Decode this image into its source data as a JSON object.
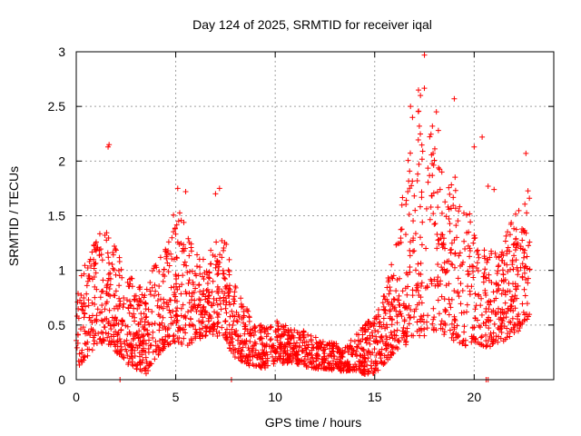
{
  "chart_data": {
    "type": "scatter",
    "title": "Day 124 of 2025, SRMTID for receiver iqal",
    "xlabel": "GPS time / hours",
    "ylabel": "SRMTID / TECUs",
    "xlim": [
      0,
      24
    ],
    "ylim": [
      0,
      3
    ],
    "xticks": [
      0,
      5,
      10,
      15,
      20
    ],
    "yticks": [
      0,
      0.5,
      1,
      1.5,
      2,
      2.5,
      3
    ],
    "xtick_labels": [
      "0",
      "5",
      "10",
      "15",
      "20"
    ],
    "ytick_labels": [
      "0",
      "0.5",
      "1",
      "1.5",
      "2",
      "2.5",
      "3"
    ],
    "grid": true,
    "marker": "+",
    "series": [
      {
        "name": "SRMTID",
        "color": "#ff0000",
        "profile_x": [
          0,
          0.5,
          1,
          1.5,
          2,
          2.5,
          3,
          3.5,
          4,
          4.5,
          5,
          5.5,
          6,
          6.5,
          7,
          7.5,
          8,
          8.5,
          9,
          9.5,
          10,
          10.5,
          11,
          11.5,
          12,
          12.5,
          13,
          13.5,
          14,
          14.5,
          15,
          15.5,
          16,
          16.5,
          17,
          17.5,
          18,
          18.5,
          19,
          19.5,
          20,
          20.5,
          21,
          21.5,
          22,
          22.5,
          22.8
        ],
        "profile_low": [
          0.1,
          0.2,
          0.3,
          0.35,
          0.25,
          0.15,
          0.1,
          0.05,
          0.2,
          0.3,
          0.35,
          0.3,
          0.35,
          0.4,
          0.4,
          0.35,
          0.2,
          0.15,
          0.1,
          0.1,
          0.15,
          0.15,
          0.15,
          0.12,
          0.1,
          0.1,
          0.08,
          0.08,
          0.08,
          0.05,
          0.05,
          0.15,
          0.25,
          0.3,
          0.35,
          0.4,
          0.45,
          0.4,
          0.35,
          0.3,
          0.35,
          0.3,
          0.3,
          0.35,
          0.4,
          0.5,
          0.6
        ],
        "profile_high": [
          0.8,
          1.1,
          1.3,
          1.4,
          1.2,
          1.0,
          0.9,
          0.8,
          1.1,
          1.2,
          1.6,
          1.5,
          1.2,
          1.1,
          1.3,
          1.3,
          0.9,
          0.7,
          0.5,
          0.5,
          0.55,
          0.5,
          0.45,
          0.45,
          0.4,
          0.35,
          0.35,
          0.3,
          0.4,
          0.5,
          0.6,
          0.8,
          1.2,
          1.8,
          2.4,
          2.7,
          2.2,
          1.8,
          1.9,
          1.6,
          1.5,
          1.3,
          1.2,
          1.3,
          1.5,
          1.6,
          1.8
        ],
        "outliers": [
          [
            1.6,
            2.13
          ],
          [
            1.65,
            2.15
          ],
          [
            17.5,
            2.97
          ],
          [
            17.2,
            2.65
          ],
          [
            17.3,
            2.6
          ],
          [
            19.0,
            2.57
          ],
          [
            18.1,
            2.45
          ],
          [
            16.8,
            2.5
          ],
          [
            16.9,
            2.4
          ],
          [
            17.9,
            2.32
          ],
          [
            18.2,
            2.28
          ],
          [
            20.4,
            2.22
          ],
          [
            20.0,
            2.13
          ],
          [
            22.6,
            2.07
          ],
          [
            5.1,
            1.75
          ],
          [
            7.2,
            1.75
          ],
          [
            7.0,
            1.7
          ],
          [
            5.5,
            1.72
          ],
          [
            20.7,
            1.77
          ],
          [
            21.0,
            1.74
          ],
          [
            2.2,
            0.0
          ],
          [
            7.8,
            0.0
          ],
          [
            20.6,
            0.0
          ],
          [
            20.7,
            0.0
          ],
          [
            14.5,
            0.05
          ],
          [
            14.7,
            0.07
          ]
        ],
        "seed": 124,
        "count": 2300
      }
    ]
  }
}
